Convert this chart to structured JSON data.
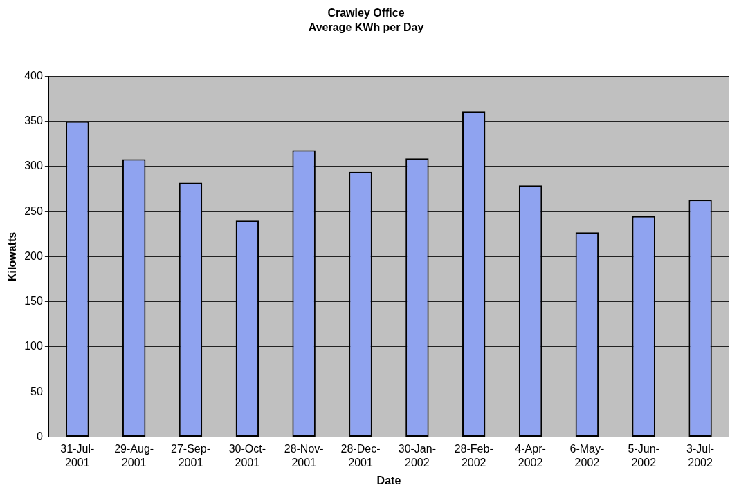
{
  "chart_data": {
    "type": "bar",
    "title": "Crawley Office",
    "subtitle": "Average KWh per Day",
    "xlabel": "Date",
    "ylabel": "Kilowatts",
    "categories": [
      "31-Jul-2001",
      "29-Aug-2001",
      "27-Sep-2001",
      "30-Oct-2001",
      "28-Nov-2001",
      "28-Dec-2001",
      "30-Jan-2002",
      "28-Feb-2002",
      "4-Apr-2002",
      "6-May-2002",
      "5-Jun-2002",
      "3-Jul-2002"
    ],
    "values": [
      350,
      308,
      282,
      240,
      318,
      294,
      309,
      361,
      279,
      227,
      245,
      263
    ],
    "color": "#8fa3f0",
    "ylim": [
      0,
      400
    ],
    "yticks": [
      0,
      50,
      100,
      150,
      200,
      250,
      300,
      350,
      400
    ],
    "grid": "y"
  }
}
